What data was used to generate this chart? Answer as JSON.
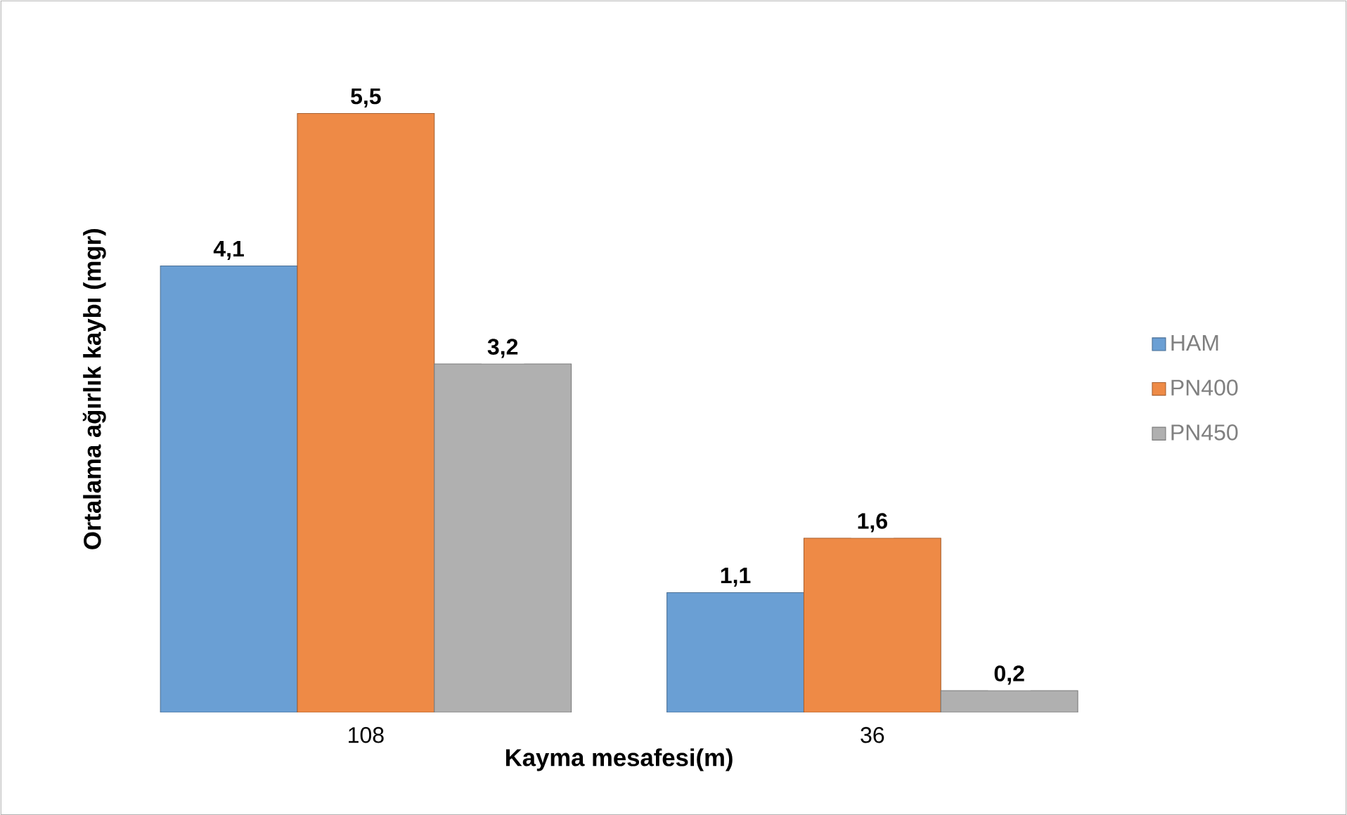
{
  "chart_data": {
    "type": "bar",
    "xlabel": "Kayma mesafesi(m)",
    "ylabel": "Ortalama ağırlık kaybı (mgr)",
    "categories": [
      "108",
      "36"
    ],
    "series": [
      {
        "name": "HAM",
        "color": "#6a9fd4",
        "values": [
          4.1,
          1.1
        ],
        "value_labels": [
          "4,1",
          "1,1"
        ]
      },
      {
        "name": "PN400",
        "color": "#ee8a46",
        "values": [
          5.5,
          1.6
        ],
        "value_labels": [
          "5,5",
          "1,6"
        ]
      },
      {
        "name": "PN450",
        "color": "#b0b0b0",
        "values": [
          3.2,
          0.2
        ],
        "value_labels": [
          "3,2",
          "0,2"
        ]
      }
    ],
    "legend": "right"
  }
}
